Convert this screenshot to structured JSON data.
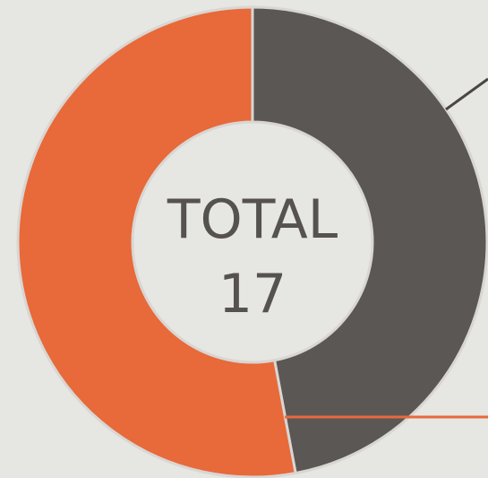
{
  "chart_data": {
    "type": "donut",
    "center_label": "TOTAL",
    "total": 17,
    "categories": [
      null,
      null
    ],
    "values": [
      8,
      9
    ],
    "colors": [
      "#5b5755",
      "#e8693a"
    ]
  }
}
